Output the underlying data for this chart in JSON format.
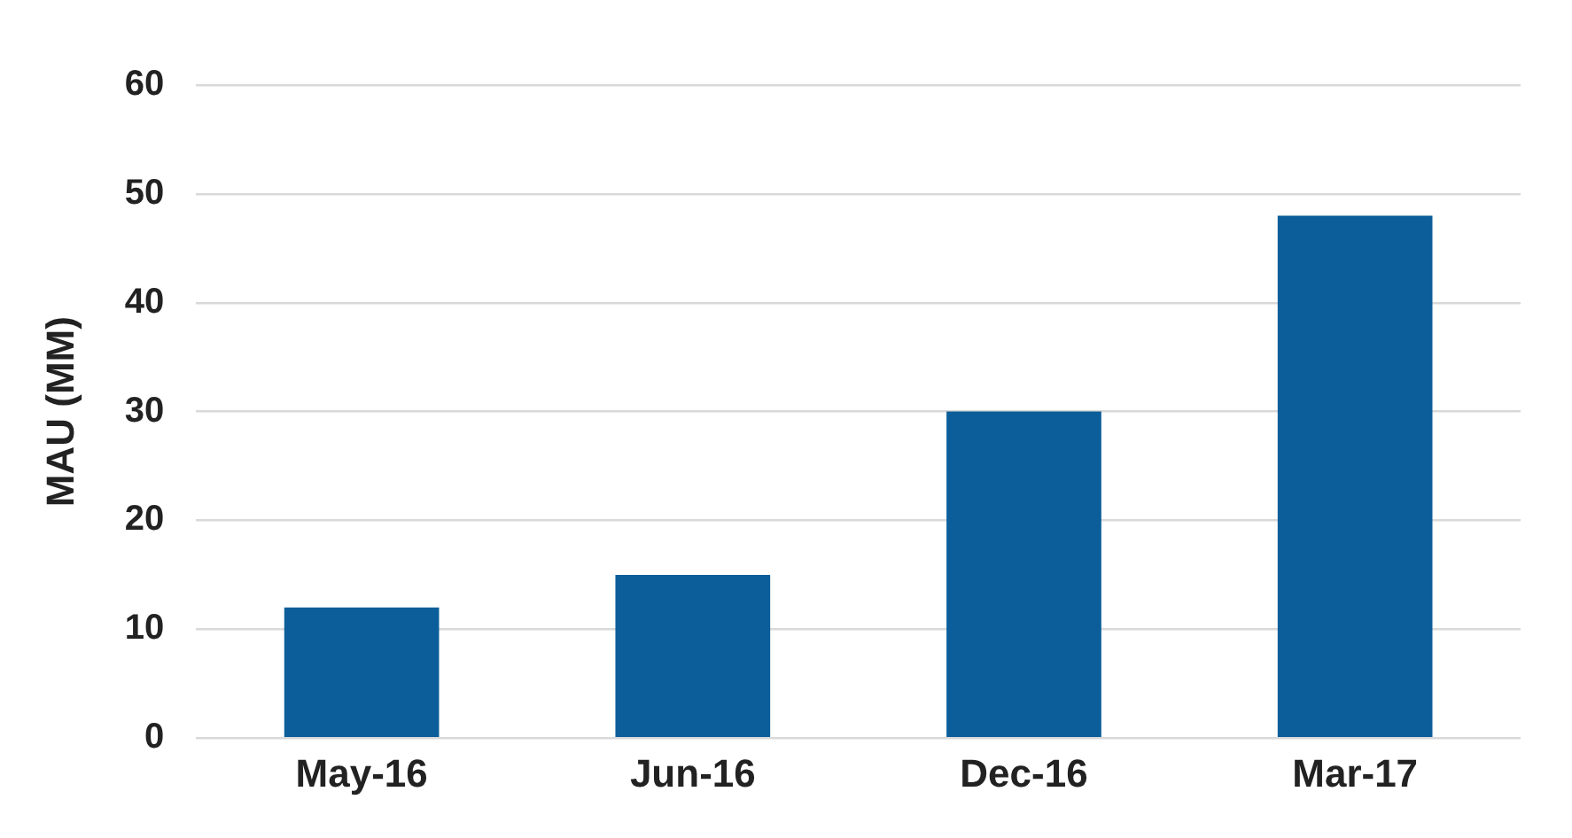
{
  "chart_data": {
    "type": "bar",
    "ylabel": "MAU (MM)",
    "categories": [
      "May-16",
      "Jun-16",
      "Dec-16",
      "Mar-17"
    ],
    "values": [
      12,
      15,
      30,
      48
    ],
    "color": "#0b5e9a",
    "ylim": [
      0,
      60
    ],
    "yticks": [
      0,
      10,
      20,
      30,
      40,
      50,
      60
    ],
    "grid": "y",
    "legend": false
  }
}
